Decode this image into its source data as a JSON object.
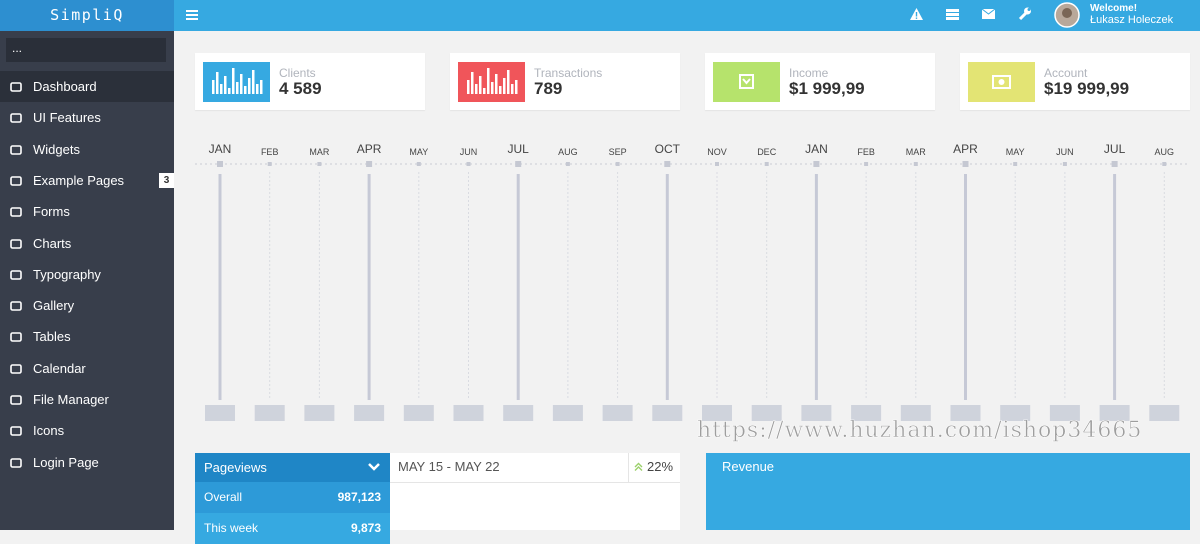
{
  "header": {
    "brand": "SimpliQ",
    "welcome": "Welcome!",
    "user": "Łukasz Holeczek"
  },
  "sidebar": {
    "search": "...",
    "items": [
      {
        "label": "Dashboard"
      },
      {
        "label": "UI Features"
      },
      {
        "label": "Widgets"
      },
      {
        "label": "Example Pages",
        "badge": "3"
      },
      {
        "label": "Forms"
      },
      {
        "label": "Charts"
      },
      {
        "label": "Typography"
      },
      {
        "label": "Gallery"
      },
      {
        "label": "Tables"
      },
      {
        "label": "Calendar"
      },
      {
        "label": "File Manager"
      },
      {
        "label": "Icons"
      },
      {
        "label": "Login Page"
      }
    ]
  },
  "stats": [
    {
      "label": "Clients",
      "value": "4 589"
    },
    {
      "label": "Transactions",
      "value": "789"
    },
    {
      "label": "Income",
      "value": "$1 999,99"
    },
    {
      "label": "Account",
      "value": "$19 999,99"
    }
  ],
  "timeline": {
    "months": [
      "JAN",
      "FEB",
      "MAR",
      "APR",
      "MAY",
      "JUN",
      "JUL",
      "AUG",
      "SEP",
      "OCT",
      "NOV",
      "DEC",
      "JAN",
      "FEB",
      "MAR",
      "APR",
      "MAY",
      "JUN",
      "JUL",
      "AUG"
    ]
  },
  "pageviews": {
    "title": "Pageviews",
    "rows": [
      [
        "Overall",
        "987,123"
      ],
      [
        "This week",
        "9,873"
      ]
    ]
  },
  "range": {
    "dates": "MAY 15 - MAY 22",
    "change": "22%"
  },
  "revenue": {
    "title": "Revenue"
  },
  "watermark": "https://www.huzhan.com/ishop34665"
}
